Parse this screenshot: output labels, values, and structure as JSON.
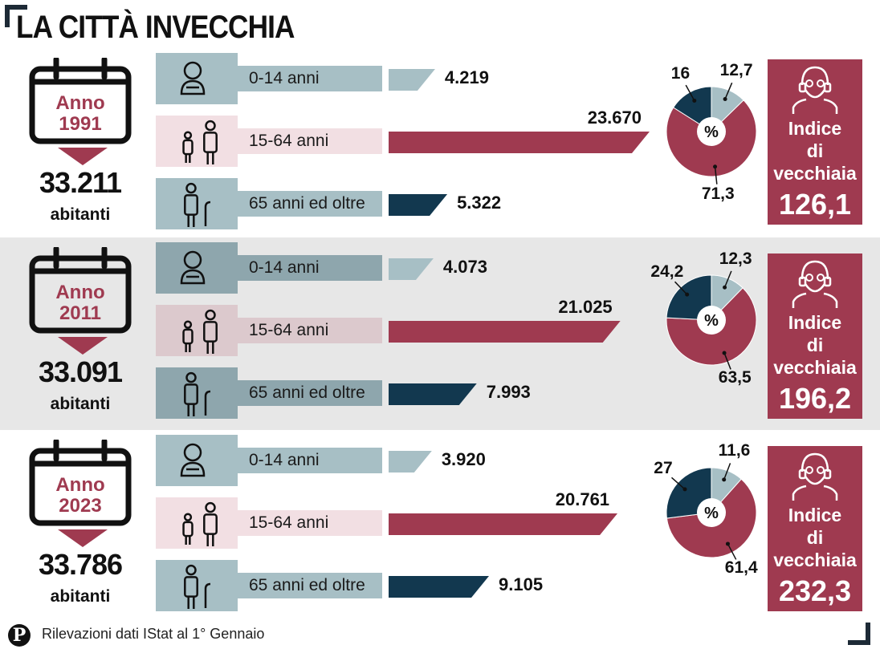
{
  "title": "LA CITTÀ INVECCHIA",
  "footer": "Rilevazioni dati IStat al 1° Gennaio",
  "logo_letter": "P",
  "colors": {
    "child": "#a7bfc5",
    "adult": "#9f3a50",
    "senior": "#12384f",
    "gray_band": "#e7e7e7"
  },
  "labels": {
    "anno": "Anno",
    "abitanti": "abitanti",
    "percent": "%",
    "index_title": [
      "Indice",
      "di",
      "vecchiaia"
    ],
    "age_groups": [
      "0-14 anni",
      "15-64 anni",
      "65 anni ed oltre"
    ]
  },
  "chart_data": [
    {
      "type": "bar",
      "year": "1991",
      "population": "33.211",
      "categories": [
        "0-14 anni",
        "15-64 anni",
        "65 anni ed oltre"
      ],
      "values": [
        4219,
        23670,
        5322
      ],
      "value_labels": [
        "4.219",
        "23.670",
        "5.322"
      ],
      "pie": {
        "type": "pie",
        "values": [
          12.7,
          71.3,
          16
        ],
        "labels": [
          "12,7",
          "71,3",
          "16"
        ]
      },
      "index": "126,1"
    },
    {
      "type": "bar",
      "year": "2011",
      "population": "33.091",
      "categories": [
        "0-14 anni",
        "15-64 anni",
        "65 anni ed oltre"
      ],
      "values": [
        4073,
        21025,
        7993
      ],
      "value_labels": [
        "4.073",
        "21.025",
        "7.993"
      ],
      "pie": {
        "type": "pie",
        "values": [
          12.3,
          63.5,
          24.2
        ],
        "labels": [
          "12,3",
          "63,5",
          "24,2"
        ]
      },
      "index": "196,2"
    },
    {
      "type": "bar",
      "year": "2023",
      "population": "33.786",
      "categories": [
        "0-14 anni",
        "15-64 anni",
        "65 anni ed oltre"
      ],
      "values": [
        3920,
        20761,
        9105
      ],
      "value_labels": [
        "3.920",
        "20.761",
        "9.105"
      ],
      "pie": {
        "type": "pie",
        "values": [
          11.6,
          61.4,
          27
        ],
        "labels": [
          "11,6",
          "61,4",
          "27"
        ]
      },
      "index": "232,3"
    }
  ]
}
